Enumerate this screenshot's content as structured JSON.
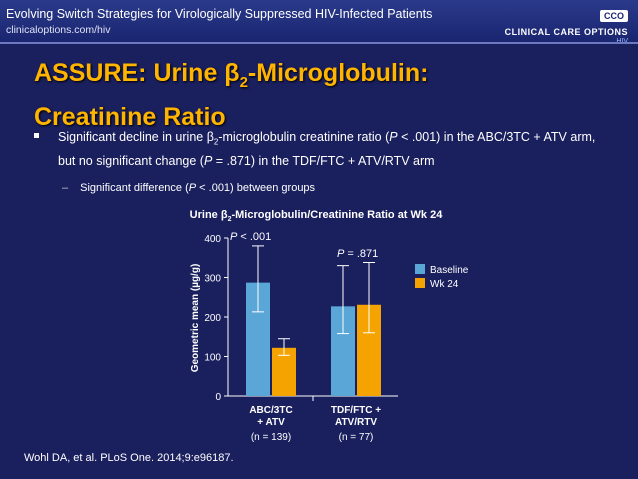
{
  "header": {
    "title": "Evolving Switch Strategies for Virologically Suppressed HIV-Infected Patients",
    "url": "clinicaloptions.com/hiv",
    "logo_badge": "CCO",
    "logo_text": "CLINICAL CARE OPTIONS",
    "logo_sub": "HIV"
  },
  "slide": {
    "title_prefix": "ASSURE: Urine β",
    "title_sub": "2",
    "title_suffix": "-Microglobulin:",
    "title_line2": "Creatinine Ratio",
    "bullet_a": "Significant decline in urine β",
    "bullet_sub": "2",
    "bullet_b": "-microglobulin creatinine ratio (",
    "bullet_p1": "P",
    "bullet_c": " < .001) in the ABC/3TC + ATV arm, but no significant change (",
    "bullet_p2": "P",
    "bullet_d": " = .871) in the TDF/FTC + ATV/RTV arm",
    "subbullet_a": "Significant difference (",
    "subbullet_p": "P",
    "subbullet_b": " < .001) between groups",
    "citation": "Wohl DA, et al. PLoS One. 2014;9:e96187."
  },
  "chart_data": {
    "type": "bar",
    "title": "Urine β2-Microglobulin/Creatinine Ratio at Wk 24",
    "ylabel": "Geometric mean (µg/g)",
    "ylim": [
      0,
      400
    ],
    "yticks": [
      0,
      100,
      200,
      300,
      400
    ],
    "categories": [
      {
        "line1": "ABC/3TC",
        "line2": "+ ATV",
        "n": "(n = 139)"
      },
      {
        "line1": "TDF/FTC +",
        "line2": "ATV/RTV",
        "n": "(n = 77)"
      }
    ],
    "series": [
      {
        "name": "Baseline",
        "color": "#5aa6d6",
        "values": [
          287,
          227
        ],
        "err_low": [
          213,
          158
        ],
        "err_high": [
          380,
          330
        ]
      },
      {
        "name": "Wk 24",
        "color": "#f5a300",
        "values": [
          122,
          231
        ],
        "err_low": [
          103,
          160
        ],
        "err_high": [
          145,
          338
        ]
      }
    ],
    "annotations": [
      {
        "p": "P",
        "text": " < .001"
      },
      {
        "p": "P",
        "text": " = .871"
      }
    ],
    "legend_position": "right"
  }
}
